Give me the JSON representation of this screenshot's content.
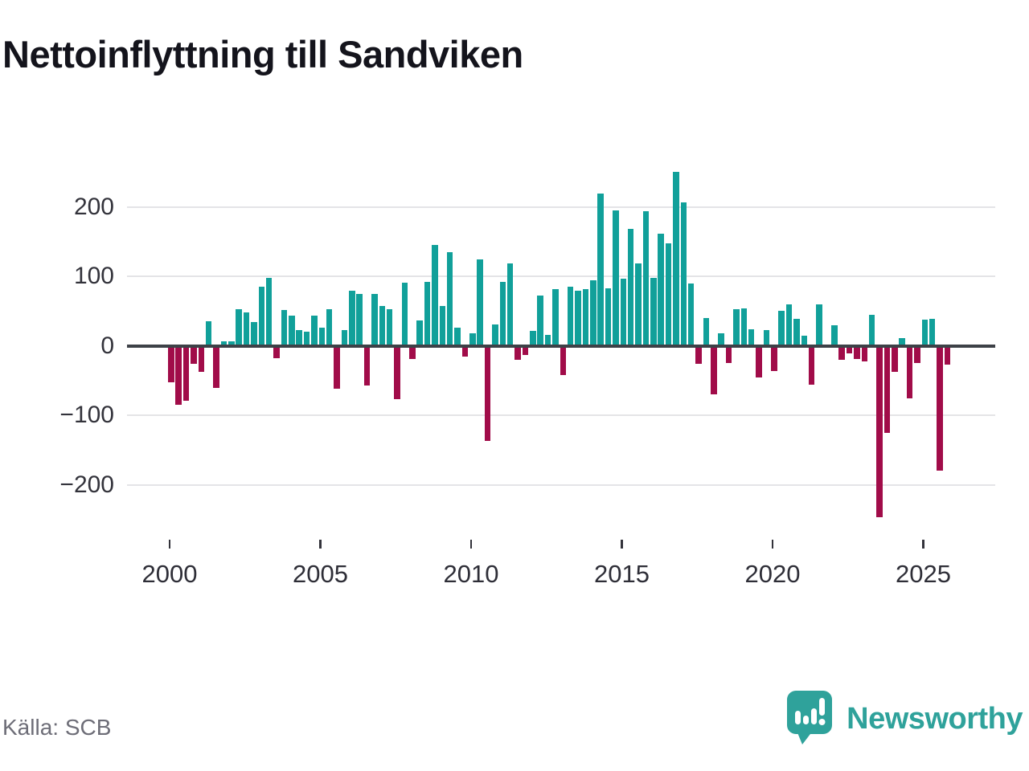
{
  "title": "Nettoinflyttning till Sandviken",
  "source": "Källa: SCB",
  "branding": {
    "name": "Newsworthy",
    "icon": "speech-bubble-bar-chart-icon"
  },
  "chart_data": {
    "type": "bar",
    "frequency": "quarterly",
    "title": "Nettoinflyttning till Sandviken",
    "xlabel": "",
    "ylabel": "",
    "grid": true,
    "ylim": [
      -260,
      275
    ],
    "y_ticks": [
      200,
      100,
      0,
      -100,
      -200
    ],
    "y_tick_labels": [
      "200",
      "100",
      "0",
      "−100",
      "−200"
    ],
    "x_tick_labels": [
      "2000",
      "2005",
      "2010",
      "2015",
      "2020",
      "2025"
    ],
    "positive_color": "#11a09a",
    "negative_color": "#a10c49",
    "values_by_year": [
      {
        "year": 2000,
        "q": [
          -51,
          -83,
          -77,
          -24
        ]
      },
      {
        "year": 2001,
        "q": [
          -36,
          35,
          -59,
          6
        ]
      },
      {
        "year": 2002,
        "q": [
          6,
          53,
          48,
          34
        ]
      },
      {
        "year": 2003,
        "q": [
          85,
          98,
          -16,
          52
        ]
      },
      {
        "year": 2004,
        "q": [
          43,
          22,
          20,
          43
        ]
      },
      {
        "year": 2005,
        "q": [
          26,
          53,
          -60,
          23
        ]
      },
      {
        "year": 2006,
        "q": [
          79,
          74,
          -55,
          75
        ]
      },
      {
        "year": 2007,
        "q": [
          57,
          53,
          -75,
          91
        ]
      },
      {
        "year": 2008,
        "q": [
          -17,
          36,
          92,
          145
        ]
      },
      {
        "year": 2009,
        "q": [
          57,
          135,
          26,
          -14
        ]
      },
      {
        "year": 2010,
        "q": [
          18,
          124,
          -135,
          31
        ]
      },
      {
        "year": 2011,
        "q": [
          92,
          119,
          -18,
          -11
        ]
      },
      {
        "year": 2012,
        "q": [
          21,
          72,
          16,
          82
        ]
      },
      {
        "year": 2013,
        "q": [
          -41,
          85,
          79,
          82
        ]
      },
      {
        "year": 2014,
        "q": [
          94,
          219,
          83,
          195
        ]
      },
      {
        "year": 2015,
        "q": [
          97,
          168,
          119,
          194
        ]
      },
      {
        "year": 2016,
        "q": [
          98,
          161,
          147,
          250
        ]
      },
      {
        "year": 2017,
        "q": [
          206,
          90,
          -24,
          40
        ]
      },
      {
        "year": 2018,
        "q": [
          -68,
          18,
          -23,
          53
        ]
      },
      {
        "year": 2019,
        "q": [
          54,
          24,
          -44,
          23
        ]
      },
      {
        "year": 2020,
        "q": [
          -35,
          50,
          59,
          39
        ]
      },
      {
        "year": 2021,
        "q": [
          14,
          -54,
          59,
          0
        ]
      },
      {
        "year": 2022,
        "q": [
          30,
          -18,
          -9,
          -17
        ]
      },
      {
        "year": 2023,
        "q": [
          -21,
          45,
          -245,
          -124
        ]
      },
      {
        "year": 2024,
        "q": [
          -36,
          11,
          -74,
          -23
        ]
      },
      {
        "year": 2025,
        "q": [
          37,
          39,
          -178,
          -26
        ]
      }
    ]
  }
}
